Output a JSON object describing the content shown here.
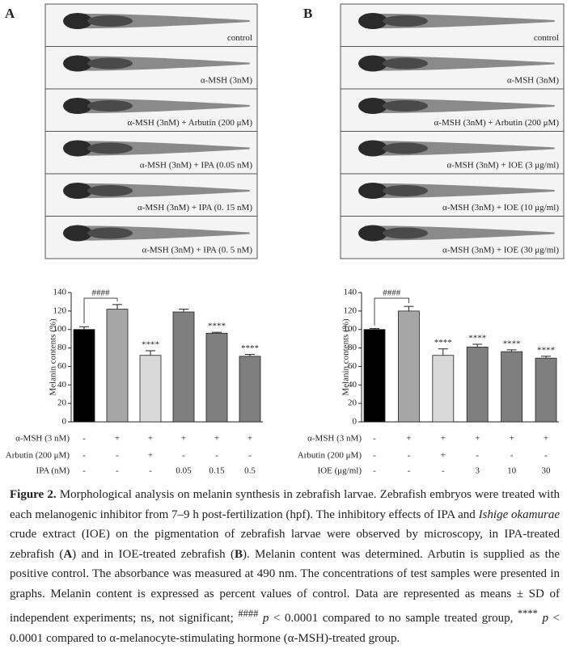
{
  "panel_labels": [
    "A",
    "B"
  ],
  "image_labels": [
    [
      "control",
      "α-MSH (3nM)",
      "α-MSH (3nM) + Arbutin (200 μM)",
      "α-MSH (3nM) + IPA (0.05 nM)",
      "α-MSH (3nM) + IPA (0. 15 nM)",
      "α-MSH (3nM) + IPA (0. 5 nM)"
    ],
    [
      "control",
      "α-MSH (3nM)",
      "α-MSH (3nM) + Arbutin (200 μM)",
      "α-MSH (3nM) + IOE (3 μg/ml)",
      "α-MSH (3nM) + IOE (10 μg/ml)",
      "α-MSH (3nM) + IOE (30 μg/ml)"
    ]
  ],
  "chart_data": [
    {
      "type": "bar",
      "y_label": "Melanin contents (%)",
      "ylim": [
        0,
        140
      ],
      "yticks": [
        0,
        20,
        40,
        60,
        80,
        100,
        120,
        140
      ],
      "series": [
        {
          "values": [
            100,
            122,
            72,
            119,
            96,
            71
          ],
          "errors": [
            3,
            5,
            5,
            3,
            1,
            2
          ],
          "colors": [
            "#000000",
            "#a6a6a6",
            "#d9d9d9",
            "#7f7f7f",
            "#7f7f7f",
            "#7f7f7f"
          ]
        }
      ],
      "bracket_label": "####",
      "annotations": [
        null,
        null,
        "****",
        null,
        "****",
        "****"
      ],
      "treatment_rows": [
        {
          "label": "α-MSH (3 nM)",
          "values": [
            "-",
            "+",
            "+",
            "+",
            "+",
            "+"
          ]
        },
        {
          "label": "Arbutin (200 μM)",
          "values": [
            "-",
            "-",
            "+",
            "-",
            "-",
            "-"
          ]
        },
        {
          "label": "IPA (nM)",
          "values": [
            "-",
            "-",
            "-",
            "0.05",
            "0.15",
            "0.5"
          ]
        }
      ]
    },
    {
      "type": "bar",
      "y_label": "Melanin contents (%)",
      "ylim": [
        0,
        140
      ],
      "yticks": [
        0,
        20,
        40,
        60,
        80,
        100,
        120,
        140
      ],
      "series": [
        {
          "values": [
            100,
            120,
            72,
            81,
            76,
            69
          ],
          "errors": [
            1,
            5,
            7,
            3,
            2,
            2
          ],
          "colors": [
            "#000000",
            "#a6a6a6",
            "#d9d9d9",
            "#7f7f7f",
            "#7f7f7f",
            "#7f7f7f"
          ]
        }
      ],
      "bracket_label": "####",
      "annotations": [
        null,
        null,
        "****",
        "****",
        "****",
        "****"
      ],
      "treatment_rows": [
        {
          "label": "α-MSH (3 nM)",
          "values": [
            "-",
            "+",
            "+",
            "+",
            "+",
            "+"
          ]
        },
        {
          "label": "Arbutin (200 μM)",
          "values": [
            "-",
            "-",
            "+",
            "-",
            "-",
            "-"
          ]
        },
        {
          "label": "IOE (μg/ml)",
          "values": [
            "-",
            "-",
            "-",
            "3",
            "10",
            "30"
          ]
        }
      ]
    }
  ],
  "caption": [
    "Figure 2.",
    " Morphological analysis on melanin synthesis in zebrafish larvae.  Zebrafish embryos were treated with each melanogenic inhibitor from 7–9 h post-fertilization (hpf).  The inhibitory effects of IPA and ",
    "Ishige okamurae",
    " crude extract (IOE) on the pigmentation of zebrafish larvae were observed by microscopy, in IPA-treated zebrafish (",
    "A",
    ") and in IOE-treated zebrafish (",
    "B",
    "). Melanin content was determined.  Arbutin is supplied as the positive control.  The absorbance was measured at 490 nm. The concentrations of test samples were presented in graphs. Melanin content is expressed as percent values of control.  Data are represented as means ± SD of independent experiments; ns, not significant; ",
    "####",
    "p",
    " < 0.0001 compared to no sample treated group, ",
    "****",
    "p",
    " < 0.0001 compared to α-melanocyte-stimulating hormone (α-MSH)-treated group."
  ]
}
